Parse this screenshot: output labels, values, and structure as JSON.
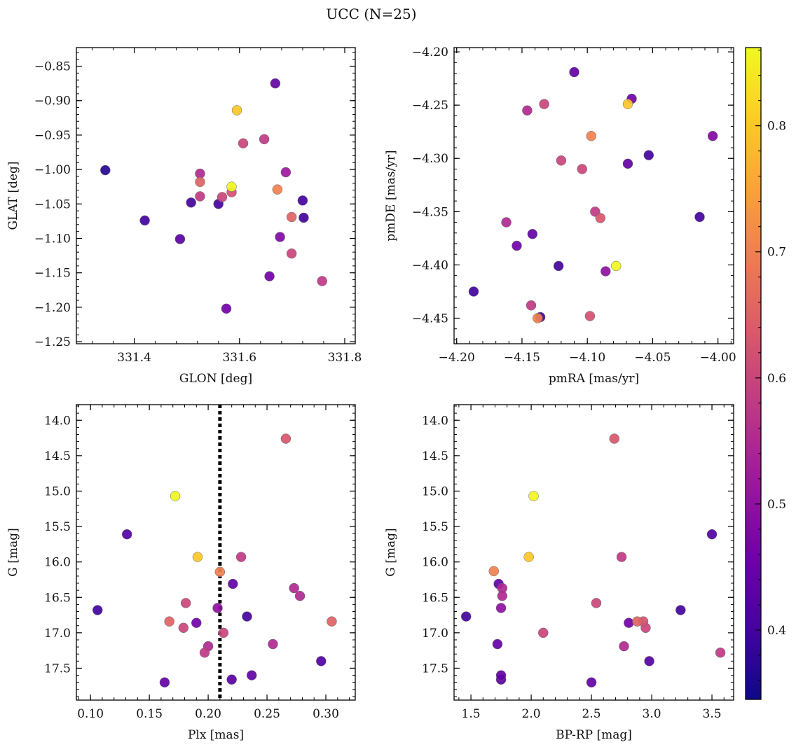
{
  "figure": {
    "title": "UCC (N=25)"
  },
  "colors": {
    "colormap": [
      "#0d0887",
      "#46039f",
      "#7201a8",
      "#9c179e",
      "#bd3786",
      "#d8576b",
      "#ed7953",
      "#fb9f3a",
      "#fdca26",
      "#f0f921"
    ],
    "marker_edge": "#666666",
    "reference_line": "#000000"
  },
  "colorbar": {
    "vmin": 0.345,
    "vmax": 0.862,
    "ticks": [
      0.4,
      0.5,
      0.6,
      0.7,
      0.8
    ],
    "tick_labels": [
      "0.4",
      "0.5",
      "0.6",
      "0.7",
      "0.8"
    ]
  },
  "chart_data": [
    {
      "type": "scatter",
      "name": "glon-glat",
      "title": "",
      "xlabel": "GLON [deg]",
      "ylabel": "GLAT [deg]",
      "xlim": [
        331.29,
        331.82
      ],
      "ylim": [
        -1.253,
        -0.823
      ],
      "xticks": [
        331.4,
        331.6,
        331.8
      ],
      "xtick_labels": [
        "331.4",
        "331.6",
        "331.8"
      ],
      "yticks": [
        -1.25,
        -1.2,
        -1.15,
        -1.1,
        -1.05,
        -1.0,
        -0.95,
        -0.9,
        -0.85
      ],
      "ytick_labels": [
        "−1.25",
        "−1.20",
        "−1.15",
        "−1.10",
        "−1.05",
        "−1.00",
        "−0.95",
        "−0.90",
        "−0.85"
      ],
      "points": [
        {
          "x": 331.345,
          "y": -1.001,
          "c": 0.37
        },
        {
          "x": 331.42,
          "y": -1.074,
          "c": 0.4
        },
        {
          "x": 331.487,
          "y": -1.101,
          "c": 0.43
        },
        {
          "x": 331.508,
          "y": -1.048,
          "c": 0.4
        },
        {
          "x": 331.525,
          "y": -1.006,
          "c": 0.55
        },
        {
          "x": 331.525,
          "y": -1.018,
          "c": 0.65
        },
        {
          "x": 331.525,
          "y": -1.039,
          "c": 0.58
        },
        {
          "x": 331.56,
          "y": -1.05,
          "c": 0.4
        },
        {
          "x": 331.567,
          "y": -1.04,
          "c": 0.6
        },
        {
          "x": 331.575,
          "y": -1.202,
          "c": 0.46
        },
        {
          "x": 331.585,
          "y": -1.025,
          "c": 0.86
        },
        {
          "x": 331.585,
          "y": -1.033,
          "c": 0.62
        },
        {
          "x": 331.595,
          "y": -0.914,
          "c": 0.8
        },
        {
          "x": 331.607,
          "y": -0.962,
          "c": 0.6
        },
        {
          "x": 331.647,
          "y": -0.956,
          "c": 0.58
        },
        {
          "x": 331.657,
          "y": -1.155,
          "c": 0.46
        },
        {
          "x": 331.668,
          "y": -0.875,
          "c": 0.44
        },
        {
          "x": 331.672,
          "y": -1.029,
          "c": 0.7
        },
        {
          "x": 331.677,
          "y": -1.098,
          "c": 0.48
        },
        {
          "x": 331.688,
          "y": -1.004,
          "c": 0.52
        },
        {
          "x": 331.699,
          "y": -1.069,
          "c": 0.65
        },
        {
          "x": 331.699,
          "y": -1.122,
          "c": 0.6
        },
        {
          "x": 331.72,
          "y": -1.045,
          "c": 0.4
        },
        {
          "x": 331.722,
          "y": -1.07,
          "c": 0.4
        },
        {
          "x": 331.757,
          "y": -1.162,
          "c": 0.58
        }
      ]
    },
    {
      "type": "scatter",
      "name": "pmra-pmde",
      "title": "",
      "xlabel": "pmRA [mas/yr]",
      "ylabel": "pmDE [mas/yr]",
      "xlim": [
        -4.202,
        -3.988
      ],
      "ylim": [
        -4.474,
        -4.196
      ],
      "xticks": [
        -4.2,
        -4.15,
        -4.1,
        -4.05,
        -4.0
      ],
      "xtick_labels": [
        "−4.20",
        "−4.15",
        "−4.10",
        "−4.05",
        "−4.00"
      ],
      "yticks": [
        -4.45,
        -4.4,
        -4.35,
        -4.3,
        -4.25,
        -4.2
      ],
      "ytick_labels": [
        "−4.45",
        "−4.40",
        "−4.35",
        "−4.30",
        "−4.25",
        "−4.20"
      ],
      "points": [
        {
          "x": -4.187,
          "y": -4.425,
          "c": 0.4
        },
        {
          "x": -4.162,
          "y": -4.36,
          "c": 0.55
        },
        {
          "x": -4.154,
          "y": -4.382,
          "c": 0.46
        },
        {
          "x": -4.146,
          "y": -4.255,
          "c": 0.55
        },
        {
          "x": -4.143,
          "y": -4.438,
          "c": 0.58
        },
        {
          "x": -4.142,
          "y": -4.371,
          "c": 0.44
        },
        {
          "x": -4.136,
          "y": -4.449,
          "c": 0.4
        },
        {
          "x": -4.138,
          "y": -4.45,
          "c": 0.7
        },
        {
          "x": -4.133,
          "y": -4.249,
          "c": 0.6
        },
        {
          "x": -4.122,
          "y": -4.401,
          "c": 0.4
        },
        {
          "x": -4.12,
          "y": -4.302,
          "c": 0.6
        },
        {
          "x": -4.11,
          "y": -4.219,
          "c": 0.44
        },
        {
          "x": -4.104,
          "y": -4.31,
          "c": 0.6
        },
        {
          "x": -4.097,
          "y": -4.279,
          "c": 0.7
        },
        {
          "x": -4.098,
          "y": -4.448,
          "c": 0.62
        },
        {
          "x": -4.094,
          "y": -4.35,
          "c": 0.58
        },
        {
          "x": -4.09,
          "y": -4.356,
          "c": 0.63
        },
        {
          "x": -4.086,
          "y": -4.406,
          "c": 0.5
        },
        {
          "x": -4.078,
          "y": -4.401,
          "c": 0.86
        },
        {
          "x": -4.069,
          "y": -4.249,
          "c": 0.8
        },
        {
          "x": -4.069,
          "y": -4.305,
          "c": 0.44
        },
        {
          "x": -4.066,
          "y": -4.244,
          "c": 0.46
        },
        {
          "x": -4.053,
          "y": -4.297,
          "c": 0.4
        },
        {
          "x": -4.014,
          "y": -4.355,
          "c": 0.4
        },
        {
          "x": -4.004,
          "y": -4.279,
          "c": 0.48
        }
      ]
    },
    {
      "type": "scatter",
      "name": "plx-g",
      "title": "",
      "xlabel": "Plx [mas]",
      "ylabel": "G [mag]",
      "xlim": [
        0.088,
        0.325
      ],
      "ylim": [
        17.95,
        13.78
      ],
      "y_inverted": true,
      "xticks": [
        0.1,
        0.15,
        0.2,
        0.25,
        0.3
      ],
      "xtick_labels": [
        "0.10",
        "0.15",
        "0.20",
        "0.25",
        "0.30"
      ],
      "yticks": [
        14.0,
        14.5,
        15.0,
        15.5,
        16.0,
        16.5,
        17.0,
        17.5
      ],
      "ytick_labels": [
        "14.0",
        "14.5",
        "15.0",
        "15.5",
        "16.0",
        "16.5",
        "17.0",
        "17.5"
      ],
      "reference_line": {
        "x": 0.21,
        "style": "dotted"
      },
      "points": [
        {
          "x": 0.106,
          "y": 16.68,
          "c": 0.4
        },
        {
          "x": 0.131,
          "y": 15.61,
          "c": 0.42
        },
        {
          "x": 0.163,
          "y": 17.7,
          "c": 0.44
        },
        {
          "x": 0.167,
          "y": 16.84,
          "c": 0.65
        },
        {
          "x": 0.172,
          "y": 15.07,
          "c": 0.86
        },
        {
          "x": 0.179,
          "y": 16.93,
          "c": 0.6
        },
        {
          "x": 0.181,
          "y": 16.58,
          "c": 0.6
        },
        {
          "x": 0.19,
          "y": 16.86,
          "c": 0.46
        },
        {
          "x": 0.191,
          "y": 15.93,
          "c": 0.8
        },
        {
          "x": 0.197,
          "y": 17.28,
          "c": 0.58
        },
        {
          "x": 0.2,
          "y": 17.19,
          "c": 0.55
        },
        {
          "x": 0.208,
          "y": 16.65,
          "c": 0.5
        },
        {
          "x": 0.21,
          "y": 16.14,
          "c": 0.7
        },
        {
          "x": 0.213,
          "y": 17.0,
          "c": 0.6
        },
        {
          "x": 0.22,
          "y": 17.66,
          "c": 0.43
        },
        {
          "x": 0.221,
          "y": 16.31,
          "c": 0.44
        },
        {
          "x": 0.228,
          "y": 15.93,
          "c": 0.58
        },
        {
          "x": 0.233,
          "y": 16.77,
          "c": 0.4
        },
        {
          "x": 0.237,
          "y": 17.6,
          "c": 0.44
        },
        {
          "x": 0.255,
          "y": 17.16,
          "c": 0.55
        },
        {
          "x": 0.266,
          "y": 14.26,
          "c": 0.63
        },
        {
          "x": 0.273,
          "y": 16.37,
          "c": 0.55
        },
        {
          "x": 0.278,
          "y": 16.48,
          "c": 0.55
        },
        {
          "x": 0.296,
          "y": 17.4,
          "c": 0.42
        },
        {
          "x": 0.305,
          "y": 16.84,
          "c": 0.65
        }
      ]
    },
    {
      "type": "scatter",
      "name": "bprp-g",
      "title": "",
      "xlabel": "BP-RP [mag]",
      "ylabel": "G [mag]",
      "xlim": [
        1.36,
        3.68
      ],
      "ylim": [
        17.95,
        13.78
      ],
      "y_inverted": true,
      "xticks": [
        1.5,
        2.0,
        2.5,
        3.0,
        3.5
      ],
      "xtick_labels": [
        "1.5",
        "2.0",
        "2.5",
        "3.0",
        "3.5"
      ],
      "yticks": [
        14.0,
        14.5,
        15.0,
        15.5,
        16.0,
        16.5,
        17.0,
        17.5
      ],
      "ytick_labels": [
        "14.0",
        "14.5",
        "15.0",
        "15.5",
        "16.0",
        "16.5",
        "17.0",
        "17.5"
      ],
      "points": [
        {
          "x": 1.46,
          "y": 16.77,
          "c": 0.4
        },
        {
          "x": 1.69,
          "y": 16.13,
          "c": 0.7
        },
        {
          "x": 1.72,
          "y": 17.16,
          "c": 0.44
        },
        {
          "x": 1.73,
          "y": 16.31,
          "c": 0.44
        },
        {
          "x": 1.75,
          "y": 17.6,
          "c": 0.44
        },
        {
          "x": 1.75,
          "y": 17.66,
          "c": 0.43
        },
        {
          "x": 1.75,
          "y": 16.65,
          "c": 0.5
        },
        {
          "x": 1.76,
          "y": 16.37,
          "c": 0.55
        },
        {
          "x": 1.76,
          "y": 16.48,
          "c": 0.55
        },
        {
          "x": 1.98,
          "y": 15.93,
          "c": 0.8
        },
        {
          "x": 2.02,
          "y": 15.07,
          "c": 0.86
        },
        {
          "x": 2.1,
          "y": 17.0,
          "c": 0.6
        },
        {
          "x": 2.5,
          "y": 17.7,
          "c": 0.44
        },
        {
          "x": 2.54,
          "y": 16.58,
          "c": 0.6
        },
        {
          "x": 2.69,
          "y": 14.26,
          "c": 0.63
        },
        {
          "x": 2.75,
          "y": 15.93,
          "c": 0.58
        },
        {
          "x": 2.77,
          "y": 17.19,
          "c": 0.55
        },
        {
          "x": 2.81,
          "y": 16.86,
          "c": 0.46
        },
        {
          "x": 2.88,
          "y": 16.84,
          "c": 0.65
        },
        {
          "x": 2.93,
          "y": 16.84,
          "c": 0.62
        },
        {
          "x": 2.95,
          "y": 16.93,
          "c": 0.6
        },
        {
          "x": 2.98,
          "y": 17.4,
          "c": 0.42
        },
        {
          "x": 3.24,
          "y": 16.68,
          "c": 0.4
        },
        {
          "x": 3.5,
          "y": 15.61,
          "c": 0.42
        },
        {
          "x": 3.57,
          "y": 17.28,
          "c": 0.58
        }
      ]
    }
  ]
}
